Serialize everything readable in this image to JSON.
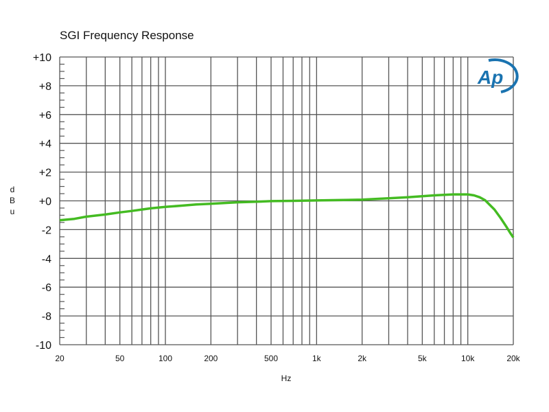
{
  "chart_data": {
    "type": "line",
    "title": "SGI Frequency Response",
    "xlabel": "Hz",
    "ylabel": [
      "d",
      "B",
      "u"
    ],
    "xscale": "log",
    "xlim": [
      20,
      20000
    ],
    "ylim": [
      -10,
      10
    ],
    "grid": true,
    "yticks": [
      10,
      8,
      6,
      4,
      2,
      0,
      -2,
      -4,
      -6,
      -8,
      -10
    ],
    "ytick_labels": [
      "+10",
      "+8",
      "+6",
      "+4",
      "+2",
      "+0",
      "-2",
      "-4",
      "-6",
      "-8",
      "-10"
    ],
    "xticks": [
      20,
      50,
      100,
      200,
      500,
      1000,
      2000,
      5000,
      10000,
      20000
    ],
    "xtick_labels": [
      "20",
      "50",
      "100",
      "200",
      "500",
      "1k",
      "2k",
      "5k",
      "10k",
      "20k"
    ],
    "series": [
      {
        "name": "SGI",
        "color": "#44bb22",
        "x": [
          20,
          25,
          30,
          40,
          50,
          60,
          70,
          80,
          100,
          130,
          160,
          200,
          300,
          400,
          500,
          700,
          1000,
          1500,
          2000,
          3000,
          4000,
          5000,
          6000,
          7000,
          8000,
          10000,
          11000,
          12000,
          13000,
          15000,
          16500,
          18000,
          19000,
          20000
        ],
        "y": [
          -1.35,
          -1.25,
          -1.1,
          -0.95,
          -0.8,
          -0.7,
          -0.6,
          -0.52,
          -0.42,
          -0.33,
          -0.25,
          -0.2,
          -0.1,
          -0.06,
          -0.02,
          0.0,
          0.03,
          0.06,
          0.08,
          0.18,
          0.25,
          0.32,
          0.38,
          0.42,
          0.45,
          0.45,
          0.38,
          0.25,
          0.05,
          -0.6,
          -1.2,
          -1.8,
          -2.2,
          -2.55
        ]
      }
    ]
  },
  "logo": {
    "text": "Ap",
    "color": "#1a73b0"
  }
}
